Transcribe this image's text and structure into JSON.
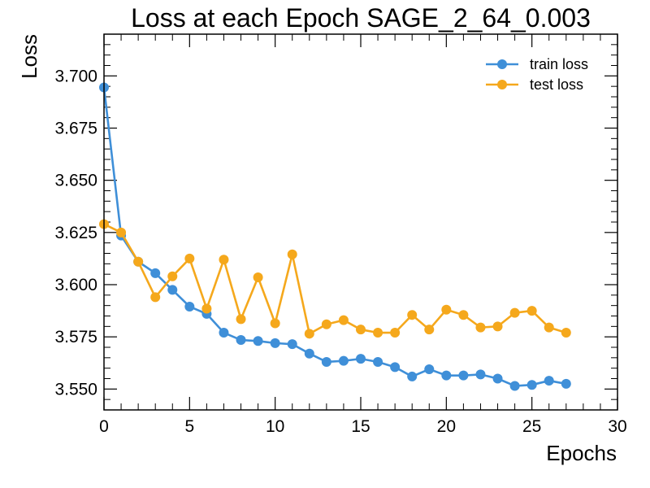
{
  "chart_data": {
    "type": "line",
    "title": "Loss at each Epoch SAGE_2_64_0.003",
    "xlabel": "Epochs",
    "ylabel": "Loss",
    "xlim": [
      0,
      30
    ],
    "ylim": [
      3.54,
      3.72
    ],
    "xticks": [
      0,
      5,
      10,
      15,
      20,
      25,
      30
    ],
    "xtick_labels": [
      "0",
      "5",
      "10",
      "15",
      "20",
      "25",
      "30"
    ],
    "yticks": [
      3.55,
      3.575,
      3.6,
      3.625,
      3.65,
      3.675,
      3.7
    ],
    "ytick_labels": [
      "3.550",
      "3.575",
      "3.600",
      "3.625",
      "3.650",
      "3.675",
      "3.700"
    ],
    "grid": false,
    "legend_position": "top-right",
    "x": [
      0,
      1,
      2,
      3,
      4,
      5,
      6,
      7,
      8,
      9,
      10,
      11,
      12,
      13,
      14,
      15,
      16,
      17,
      18,
      19,
      20,
      21,
      22,
      23,
      24,
      25,
      26,
      27
    ],
    "series": [
      {
        "name": "train loss",
        "color": "#3f8fd8",
        "values": [
          3.6945,
          3.6235,
          3.611,
          3.6055,
          3.5975,
          3.5895,
          3.586,
          3.577,
          3.5735,
          3.573,
          3.572,
          3.5715,
          3.567,
          3.563,
          3.5635,
          3.5645,
          3.563,
          3.5605,
          3.556,
          3.5595,
          3.5565,
          3.5565,
          3.557,
          3.555,
          3.5515,
          3.552,
          3.554,
          3.5525
        ]
      },
      {
        "name": "test loss",
        "color": "#f5a81c",
        "values": [
          3.629,
          3.625,
          3.611,
          3.594,
          3.604,
          3.6125,
          3.5885,
          3.612,
          3.5835,
          3.6035,
          3.5815,
          3.6145,
          3.5765,
          3.581,
          3.583,
          3.5785,
          3.577,
          3.577,
          3.5855,
          3.5785,
          3.588,
          3.5855,
          3.5795,
          3.58,
          3.5865,
          3.5875,
          3.5795,
          3.577
        ]
      }
    ]
  }
}
